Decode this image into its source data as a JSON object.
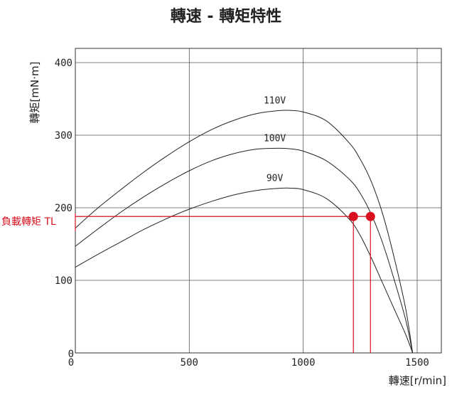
{
  "chart_data": {
    "type": "line",
    "title": "轉速 - 轉矩特性",
    "xlabel": "轉速[r/min]",
    "ylabel": "轉矩[mN·m]",
    "xlim": [
      0,
      1600
    ],
    "ylim": [
      0,
      420
    ],
    "xticks": [
      0,
      500,
      1000,
      1500
    ],
    "xtick_labels": [
      "0",
      "500",
      "1000",
      "1500"
    ],
    "yticks": [
      0,
      100,
      200,
      300,
      400
    ],
    "ytick_labels": [
      "0",
      "100",
      "200",
      "300",
      "400"
    ],
    "grid": true,
    "series": [
      {
        "name": "110V",
        "x": [
          0,
          100,
          200,
          300,
          400,
          500,
          600,
          700,
          800,
          900,
          950,
          1000,
          1100,
          1200,
          1250,
          1300,
          1350,
          1400,
          1450,
          1480
        ],
        "y": [
          172,
          200,
          225,
          249,
          271,
          291,
          308,
          321,
          330,
          334,
          334,
          332,
          320,
          290,
          267,
          235,
          190,
          130,
          60,
          0
        ]
      },
      {
        "name": "100V",
        "x": [
          0,
          100,
          200,
          300,
          400,
          500,
          600,
          700,
          800,
          900,
          950,
          1000,
          1100,
          1200,
          1250,
          1300,
          1350,
          1400,
          1450,
          1480
        ],
        "y": [
          147,
          171,
          194,
          215,
          234,
          251,
          265,
          275,
          281,
          282,
          281,
          278,
          265,
          240,
          220,
          190,
          150,
          100,
          45,
          0
        ]
      },
      {
        "name": "90V",
        "x": [
          0,
          100,
          200,
          300,
          400,
          500,
          600,
          700,
          800,
          900,
          950,
          1000,
          1100,
          1200,
          1250,
          1300,
          1350,
          1400,
          1450,
          1480
        ],
        "y": [
          118,
          136,
          153,
          170,
          185,
          198,
          209,
          218,
          224,
          227,
          227,
          225,
          213,
          185,
          162,
          130,
          95,
          60,
          25,
          0
        ]
      }
    ],
    "load": {
      "label": "負載轉矩 TL",
      "torque": 188,
      "points": [
        {
          "x": 1220,
          "y": 188
        },
        {
          "x": 1295,
          "y": 188
        }
      ],
      "color": "#d8101f"
    }
  }
}
